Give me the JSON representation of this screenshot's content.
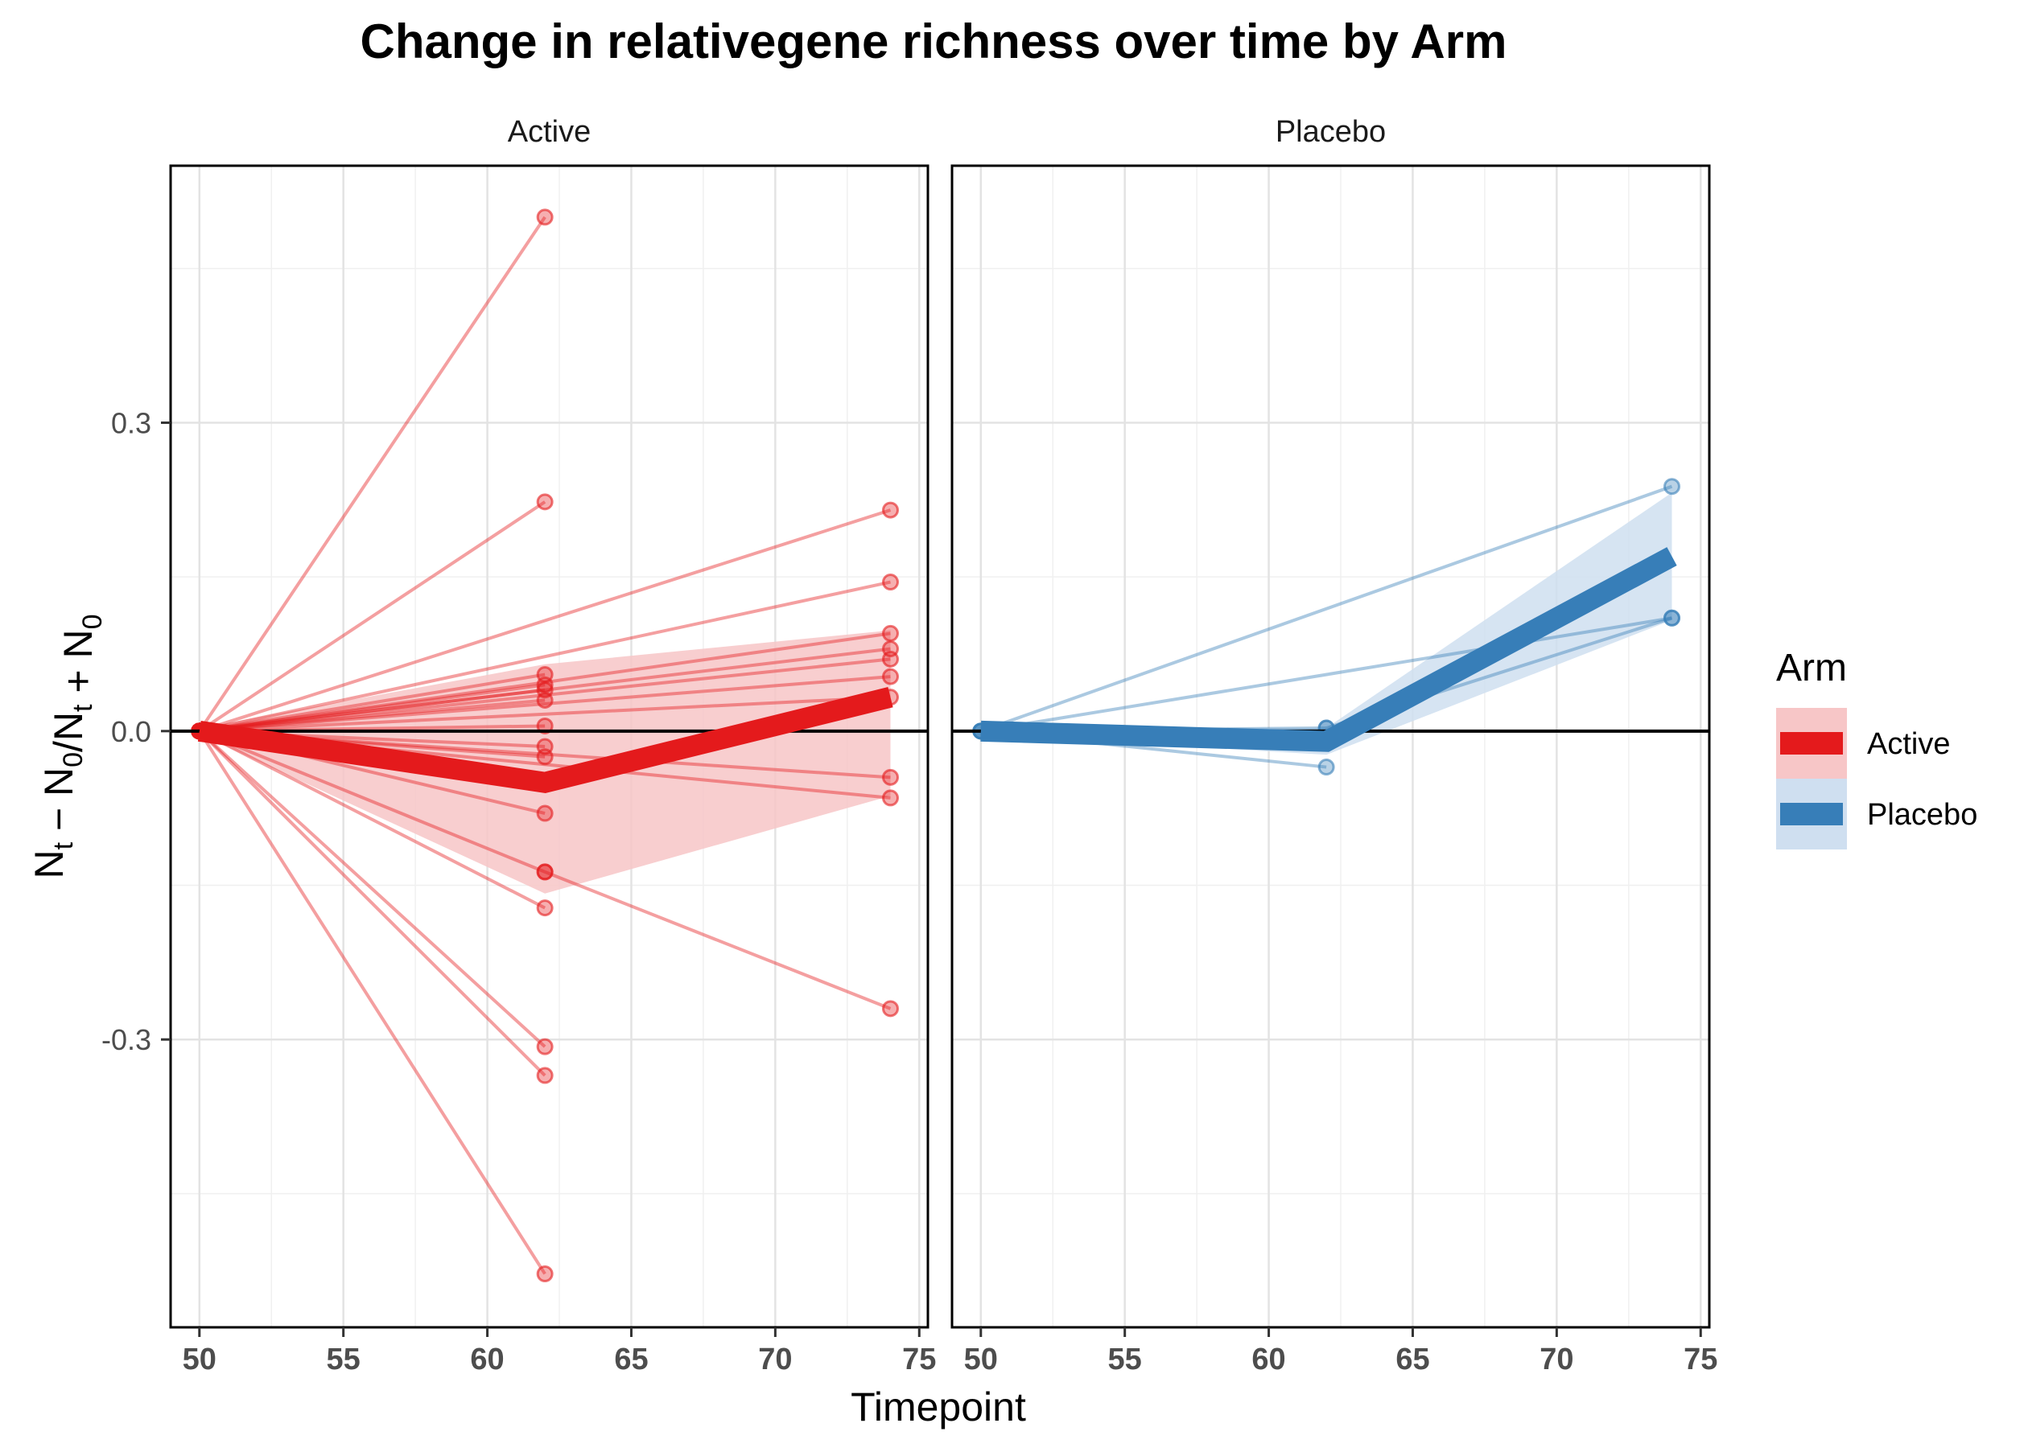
{
  "chart_data": {
    "type": "line",
    "title": "Change in relativegene richness over time by Arm",
    "xlabel": "Timepoint",
    "ylabel": {
      "parts": [
        {
          "t": "N",
          "sub": "t"
        },
        {
          "t": " − N",
          "sub": "0"
        },
        {
          "t": "/N",
          "sub": "t"
        },
        {
          "t": " + N",
          "sub": "0"
        }
      ]
    },
    "xlim": [
      49,
      75.3
    ],
    "ylim": [
      -0.58,
      0.55
    ],
    "xticks": [
      50,
      55,
      60,
      65,
      70,
      75
    ],
    "yticks": [
      -0.3,
      0.0,
      0.3
    ],
    "ytick_labels": [
      "-0.3",
      "0.0",
      "0.3"
    ],
    "reference_line_y": 0,
    "grid": true,
    "legend": {
      "title": "Arm",
      "position": "right",
      "entries": [
        {
          "label": "Active",
          "color": "#e41a1c",
          "fill": "#f7c6c7"
        },
        {
          "label": "Placebo",
          "color": "#377eb8",
          "fill": "#cfdff0"
        }
      ]
    },
    "panels": [
      {
        "name": "Active",
        "color": "#e41a1c",
        "band_color": "#f7c6c7",
        "subjects": [
          {
            "x": [
              50,
              62
            ],
            "y": [
              0,
              0.5
            ]
          },
          {
            "x": [
              50,
              62
            ],
            "y": [
              0,
              0.223
            ]
          },
          {
            "x": [
              50,
              62
            ],
            "y": [
              0,
              0.055
            ]
          },
          {
            "x": [
              50,
              62
            ],
            "y": [
              0,
              0.045
            ]
          },
          {
            "x": [
              50,
              62
            ],
            "y": [
              0,
              0.04
            ]
          },
          {
            "x": [
              50,
              62
            ],
            "y": [
              0,
              0.03
            ]
          },
          {
            "x": [
              50,
              62
            ],
            "y": [
              0,
              0.005
            ]
          },
          {
            "x": [
              50,
              62
            ],
            "y": [
              0,
              -0.015
            ]
          },
          {
            "x": [
              50,
              62
            ],
            "y": [
              0,
              -0.025
            ]
          },
          {
            "x": [
              50,
              62
            ],
            "y": [
              0,
              -0.08
            ]
          },
          {
            "x": [
              50,
              62
            ],
            "y": [
              0,
              -0.137
            ]
          },
          {
            "x": [
              50,
              62
            ],
            "y": [
              0,
              -0.172
            ]
          },
          {
            "x": [
              50,
              62
            ],
            "y": [
              0,
              -0.307
            ]
          },
          {
            "x": [
              50,
              62
            ],
            "y": [
              0,
              -0.335
            ]
          },
          {
            "x": [
              50,
              62
            ],
            "y": [
              0,
              -0.528
            ]
          },
          {
            "x": [
              50,
              74
            ],
            "y": [
              0,
              0.215
            ]
          },
          {
            "x": [
              50,
              74
            ],
            "y": [
              0,
              0.145
            ]
          },
          {
            "x": [
              50,
              74
            ],
            "y": [
              0,
              0.095
            ]
          },
          {
            "x": [
              50,
              74
            ],
            "y": [
              0,
              0.08
            ]
          },
          {
            "x": [
              50,
              74
            ],
            "y": [
              0,
              0.07
            ]
          },
          {
            "x": [
              50,
              74
            ],
            "y": [
              0,
              0.053
            ]
          },
          {
            "x": [
              50,
              74
            ],
            "y": [
              0,
              0.033
            ]
          },
          {
            "x": [
              50,
              74
            ],
            "y": [
              0,
              -0.045
            ]
          },
          {
            "x": [
              50,
              74
            ],
            "y": [
              0,
              -0.065
            ]
          },
          {
            "x": [
              62,
              74
            ],
            "y": [
              -0.137,
              -0.27
            ]
          }
        ],
        "mean": {
          "x": [
            50,
            62,
            74
          ],
          "y": [
            0,
            -0.05,
            0.033
          ]
        },
        "ci_upper": [
          0.003,
          0.065,
          0.098
        ],
        "ci_lower": [
          -0.003,
          -0.158,
          -0.063
        ]
      },
      {
        "name": "Placebo",
        "color": "#377eb8",
        "band_color": "#cfdff0",
        "subjects": [
          {
            "x": [
              50,
              62
            ],
            "y": [
              0,
              0.003
            ]
          },
          {
            "x": [
              50,
              62
            ],
            "y": [
              0,
              -0.035
            ]
          },
          {
            "x": [
              50,
              74
            ],
            "y": [
              0,
              0.238
            ]
          },
          {
            "x": [
              50,
              74
            ],
            "y": [
              0,
              0.11
            ]
          },
          {
            "x": [
              62,
              74
            ],
            "y": [
              0.003,
              0.11
            ]
          }
        ],
        "mean": {
          "x": [
            50,
            62,
            74
          ],
          "y": [
            0,
            -0.01,
            0.17
          ]
        },
        "ci_upper": [
          0.003,
          0.003,
          0.232
        ],
        "ci_lower": [
          -0.003,
          -0.023,
          0.108
        ]
      }
    ]
  }
}
